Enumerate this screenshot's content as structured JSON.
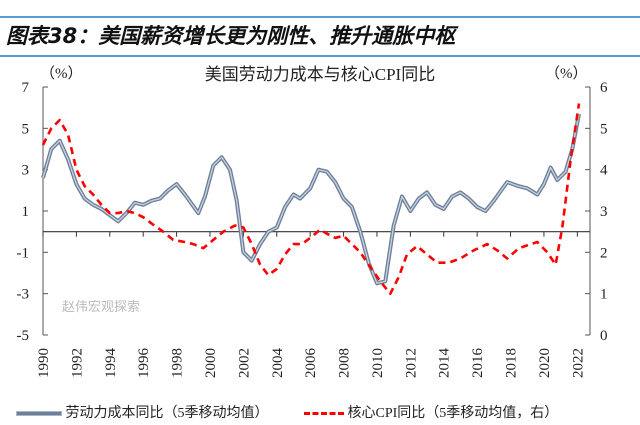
{
  "figure_title": "图表38：美国薪资增长更为刚性、推升通胀中枢",
  "watermark": "赵伟宏观探索",
  "chart_data": {
    "type": "line",
    "title": "美国劳动力成本与核心CPI同比",
    "left_unit": "（%）",
    "right_unit": "（%）",
    "left_ylim": [
      -5,
      7
    ],
    "right_ylim": [
      0,
      6
    ],
    "left_ticks": [
      "7",
      "5",
      "3",
      "1",
      "-1",
      "-3",
      "-5"
    ],
    "right_ticks": [
      "6",
      "5",
      "4",
      "3",
      "2",
      "1",
      "0"
    ],
    "x_ticks": [
      "1990",
      "1992",
      "1994",
      "1996",
      "1998",
      "2000",
      "2002",
      "2004",
      "2006",
      "2008",
      "2010",
      "2012",
      "2014",
      "2016",
      "2018",
      "2020",
      "2022"
    ],
    "xlim": [
      1990,
      2022.8
    ],
    "series": [
      {
        "name": "劳动力成本同比（5季移动均值）",
        "axis": "left",
        "color": "#6d7f99",
        "style": "solid",
        "points": [
          [
            1990,
            2.6
          ],
          [
            1990.5,
            4.0
          ],
          [
            1991,
            4.4
          ],
          [
            1991.5,
            3.5
          ],
          [
            1992,
            2.3
          ],
          [
            1992.5,
            1.6
          ],
          [
            1993,
            1.3
          ],
          [
            1993.5,
            1.1
          ],
          [
            1994,
            0.8
          ],
          [
            1994.5,
            0.5
          ],
          [
            1995,
            0.9
          ],
          [
            1995.5,
            1.4
          ],
          [
            1996,
            1.3
          ],
          [
            1996.5,
            1.5
          ],
          [
            1997,
            1.6
          ],
          [
            1997.5,
            2.0
          ],
          [
            1998,
            2.3
          ],
          [
            1998.5,
            1.8
          ],
          [
            1999.3,
            0.9
          ],
          [
            1999.7,
            1.7
          ],
          [
            2000.2,
            3.2
          ],
          [
            2000.7,
            3.6
          ],
          [
            2001.2,
            3.0
          ],
          [
            2001.6,
            1.5
          ],
          [
            2002,
            -1.0
          ],
          [
            2002.5,
            -1.4
          ],
          [
            2003,
            -0.6
          ],
          [
            2003.5,
            0.0
          ],
          [
            2004,
            0.2
          ],
          [
            2004.5,
            1.2
          ],
          [
            2005,
            1.8
          ],
          [
            2005.4,
            1.6
          ],
          [
            2006,
            2.1
          ],
          [
            2006.5,
            3.0
          ],
          [
            2007,
            2.9
          ],
          [
            2007.5,
            2.4
          ],
          [
            2008,
            1.6
          ],
          [
            2008.5,
            1.2
          ],
          [
            2009,
            0.0
          ],
          [
            2009.5,
            -1.5
          ],
          [
            2010,
            -2.5
          ],
          [
            2010.5,
            -2.4
          ],
          [
            2011,
            0.3
          ],
          [
            2011.5,
            1.7
          ],
          [
            2012,
            1.0
          ],
          [
            2012.5,
            1.6
          ],
          [
            2013,
            1.9
          ],
          [
            2013.5,
            1.3
          ],
          [
            2014,
            1.1
          ],
          [
            2014.5,
            1.7
          ],
          [
            2015,
            1.9
          ],
          [
            2015.5,
            1.6
          ],
          [
            2016,
            1.2
          ],
          [
            2016.5,
            1.0
          ],
          [
            2017,
            1.5
          ],
          [
            2017.8,
            2.4
          ],
          [
            2018.5,
            2.2
          ],
          [
            2019,
            2.1
          ],
          [
            2019.6,
            1.8
          ],
          [
            2020,
            2.3
          ],
          [
            2020.4,
            3.1
          ],
          [
            2020.8,
            2.5
          ],
          [
            2021.3,
            2.9
          ],
          [
            2021.7,
            4.0
          ],
          [
            2022.1,
            5.7
          ]
        ]
      },
      {
        "name": "核心CPI同比（5季移动均值，右）",
        "axis": "right",
        "color": "#ff0000",
        "style": "dashed",
        "points": [
          [
            1990,
            4.6
          ],
          [
            1990.5,
            5.0
          ],
          [
            1991,
            5.2
          ],
          [
            1991.5,
            4.85
          ],
          [
            1992,
            4.0
          ],
          [
            1992.5,
            3.6
          ],
          [
            1993,
            3.4
          ],
          [
            1993.5,
            3.15
          ],
          [
            1994,
            2.95
          ],
          [
            1994.5,
            2.95
          ],
          [
            1995,
            3.0
          ],
          [
            1995.5,
            2.95
          ],
          [
            1996,
            2.85
          ],
          [
            1996.5,
            2.7
          ],
          [
            1997.2,
            2.5
          ],
          [
            1997.8,
            2.3
          ],
          [
            1998.5,
            2.25
          ],
          [
            1999,
            2.2
          ],
          [
            1999.6,
            2.1
          ],
          [
            2000.2,
            2.3
          ],
          [
            2000.8,
            2.5
          ],
          [
            2001.5,
            2.65
          ],
          [
            2002,
            2.6
          ],
          [
            2002.5,
            2.2
          ],
          [
            2003,
            1.7
          ],
          [
            2003.5,
            1.45
          ],
          [
            2004,
            1.6
          ],
          [
            2004.5,
            1.95
          ],
          [
            2005,
            2.2
          ],
          [
            2005.5,
            2.2
          ],
          [
            2006,
            2.35
          ],
          [
            2006.6,
            2.55
          ],
          [
            2007,
            2.45
          ],
          [
            2007.5,
            2.35
          ],
          [
            2008,
            2.4
          ],
          [
            2008.5,
            2.2
          ],
          [
            2009,
            2.0
          ],
          [
            2009.5,
            1.7
          ],
          [
            2010.2,
            1.3
          ],
          [
            2010.8,
            1.0
          ],
          [
            2011.3,
            1.4
          ],
          [
            2011.8,
            1.95
          ],
          [
            2012.4,
            2.15
          ],
          [
            2013,
            1.95
          ],
          [
            2013.6,
            1.75
          ],
          [
            2014.3,
            1.75
          ],
          [
            2015,
            1.85
          ],
          [
            2015.8,
            2.05
          ],
          [
            2016.6,
            2.2
          ],
          [
            2017.2,
            2.05
          ],
          [
            2017.8,
            1.85
          ],
          [
            2018.5,
            2.1
          ],
          [
            2019.6,
            2.25
          ],
          [
            2020.2,
            2.0
          ],
          [
            2020.7,
            1.7
          ],
          [
            2021.1,
            2.6
          ],
          [
            2021.6,
            4.25
          ],
          [
            2022.1,
            5.6
          ]
        ]
      }
    ],
    "legend": [
      "劳动力成本同比（5季移动均值）",
      "核心CPI同比（5季移动均值，右）"
    ],
    "legend_position": "bottom",
    "grid": false
  }
}
